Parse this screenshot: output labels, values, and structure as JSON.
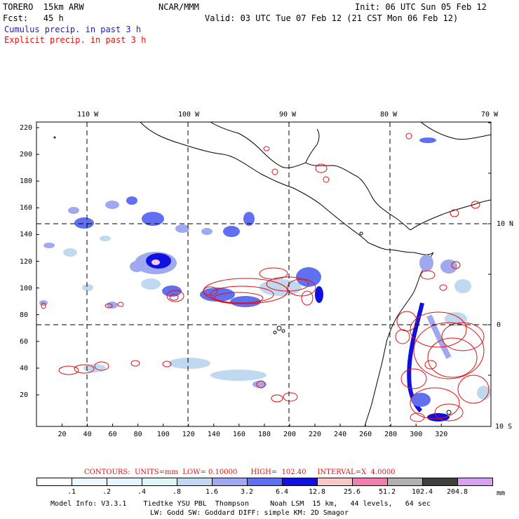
{
  "header": {
    "model": "TORERO  15km ARW",
    "org": "NCAR/MMM",
    "init": "Init: 06 UTC Sun 05 Feb 12",
    "fcst": "Fcst:   45 h",
    "valid": "Valid: 03 UTC Tue 07 Feb 12 (21 CST Mon 06 Feb 12)",
    "field1": "Cumulus precip. in past 3 h",
    "field2": "Explicit precip. in past 3 h"
  },
  "map": {
    "top_labels": [
      "110 W",
      "100 W",
      "90 W",
      "80 W",
      "70 W"
    ],
    "right_labels": [
      "10 N",
      "0",
      "10 S"
    ],
    "left_ticks": [
      "220",
      "200",
      "180",
      "160",
      "140",
      "120",
      "100",
      "80",
      "60",
      "40",
      "20"
    ],
    "bottom_ticks": [
      "20",
      "40",
      "60",
      "80",
      "100",
      "120",
      "140",
      "160",
      "180",
      "200",
      "220",
      "240",
      "260",
      "280",
      "300",
      "320"
    ],
    "colors": {
      "cumulus": "#1a1ad6",
      "explicit": "#e01010",
      "grid": "#000000"
    }
  },
  "contours": "CONTOURS:  UNITS=mm  LOW= 0.10000      HIGH=  102.40     INTERVAL=X  4.0000",
  "colorbar": {
    "labels": [
      ".1",
      ".2",
      ".4",
      ".8",
      "1.6",
      "3.2",
      "6.4",
      "12.8",
      "25.6",
      "51.2",
      "102.4",
      "204.8"
    ],
    "unit": "mm",
    "colors": [
      "#ffffff",
      "#f0f8ff",
      "#e8f4ff",
      "#dff6f6",
      "#c0d8f0",
      "#a0a8f0",
      "#6070f0",
      "#1010e0",
      "#f8c8c8",
      "#f080b0",
      "#b0b0b0",
      "#404040",
      "#d8a0f0"
    ]
  },
  "footer": {
    "line1": "Model Info: V3.3.1    Tiedtke YSU PBL  Thompson     Noah LSM  15 km,   44 levels,   64 sec",
    "line2": "LW: Godd SW: Goddard DIFF: simple KM: 2D Smagor"
  }
}
